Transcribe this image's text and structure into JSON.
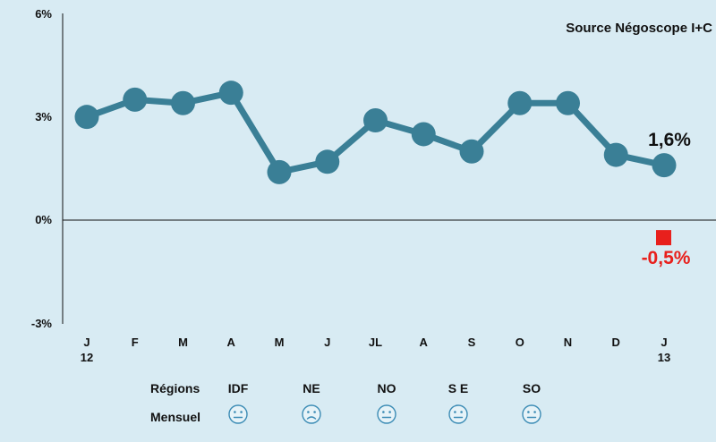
{
  "chart_data": {
    "type": "line",
    "source": "Source Négoscope I+C",
    "categories": [
      "J",
      "F",
      "M",
      "A",
      "M",
      "J",
      "JL",
      "A",
      "S",
      "O",
      "N",
      "D",
      "J"
    ],
    "year_labels": [
      "12",
      "13"
    ],
    "y_ticks": [
      "6%",
      "3%",
      "0%",
      "-3%"
    ],
    "ylim": [
      -3,
      6
    ],
    "series": [
      {
        "values": [
          3.0,
          3.5,
          3.4,
          3.7,
          1.4,
          1.7,
          2.9,
          2.5,
          2.0,
          3.4,
          3.4,
          1.9,
          1.6
        ],
        "color": "#3a7f96"
      }
    ],
    "annotations": {
      "last_value_label": "1,6%",
      "monthly_point_value": -0.5,
      "monthly_point_label": "-0,5%",
      "monthly_point_color": "#e8201c"
    },
    "legend_table": {
      "row1_label": "Régions",
      "row2_label": "Mensuel",
      "regions": [
        {
          "name": "IDF",
          "mood": "neutral-face-icon"
        },
        {
          "name": "NE",
          "mood": "sad-face-icon"
        },
        {
          "name": "NO",
          "mood": "neutral-face-icon"
        },
        {
          "name": "S E",
          "mood": "neutral-face-icon"
        },
        {
          "name": "SO",
          "mood": "neutral-face-icon"
        }
      ]
    }
  }
}
